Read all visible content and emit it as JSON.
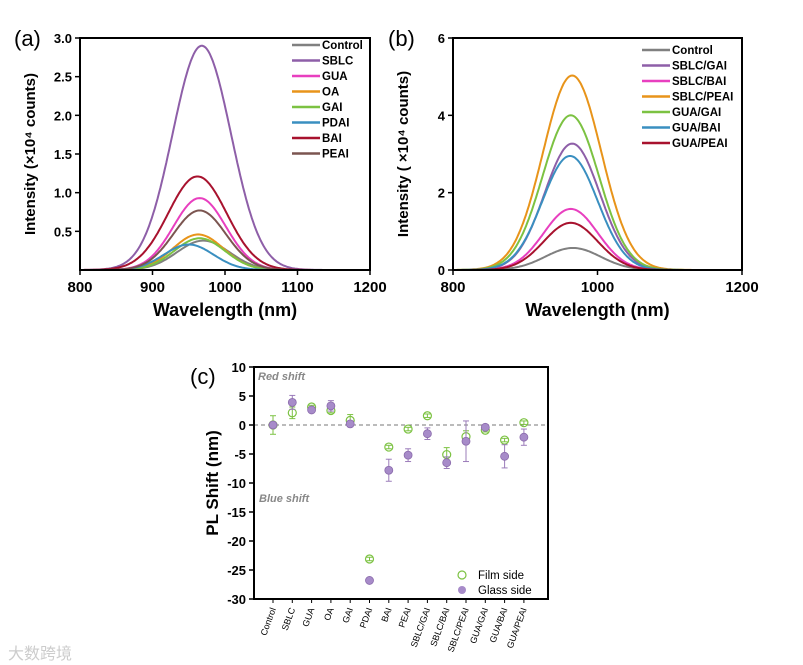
{
  "chart_data": [
    {
      "type": "line",
      "panel_label": "(a)",
      "xlabel": "Wavelength (nm)",
      "ylabel": "Intensity (×10⁴ counts)",
      "xlim": [
        800,
        1200
      ],
      "ylim": [
        0,
        3.0
      ],
      "xticks": [
        "800",
        "900",
        "1000",
        "1100",
        "1200"
      ],
      "yticks": [
        "0.5",
        "1.0",
        "1.5",
        "2.0",
        "2.5",
        "3.0"
      ],
      "legend_position": "top-right",
      "series": [
        {
          "name": "Control",
          "color": "#808080",
          "peak_nm": 970,
          "peak": 0.38,
          "fwhm_nm": 85
        },
        {
          "name": "SBLC",
          "color": "#8e5fa8",
          "peak_nm": 968,
          "peak": 2.9,
          "fwhm_nm": 95
        },
        {
          "name": "GUA",
          "color": "#e83fbf",
          "peak_nm": 965,
          "peak": 0.93,
          "fwhm_nm": 85
        },
        {
          "name": "OA",
          "color": "#e8941a",
          "peak_nm": 963,
          "peak": 0.46,
          "fwhm_nm": 82
        },
        {
          "name": "GAI",
          "color": "#7cc242",
          "peak_nm": 965,
          "peak": 0.41,
          "fwhm_nm": 82
        },
        {
          "name": "PDAI",
          "color": "#3a8fc0",
          "peak_nm": 950,
          "peak": 0.33,
          "fwhm_nm": 80
        },
        {
          "name": "BAI",
          "color": "#a8122e",
          "peak_nm": 962,
          "peak": 1.21,
          "fwhm_nm": 95
        },
        {
          "name": "PEAI",
          "color": "#7b5550",
          "peak_nm": 965,
          "peak": 0.77,
          "fwhm_nm": 85
        }
      ]
    },
    {
      "type": "line",
      "panel_label": "(b)",
      "xlabel": "Wavelength (nm)",
      "ylabel": "Intensity ( ×10⁴ counts)",
      "xlim": [
        800,
        1200
      ],
      "ylim": [
        0,
        6
      ],
      "xticks": [
        "800",
        "1000",
        "1200"
      ],
      "yticks": [
        "0",
        "2",
        "4",
        "6"
      ],
      "legend_position": "top-right",
      "series": [
        {
          "name": "Control",
          "color": "#808080",
          "peak_nm": 966,
          "peak": 0.57,
          "fwhm_nm": 90
        },
        {
          "name": "SBLC/GAI",
          "color": "#8e5fa8",
          "peak_nm": 965,
          "peak": 3.27,
          "fwhm_nm": 90
        },
        {
          "name": "SBLC/BAI",
          "color": "#e83fbf",
          "peak_nm": 963,
          "peak": 1.58,
          "fwhm_nm": 88
        },
        {
          "name": "SBLC/PEAI",
          "color": "#e8941a",
          "peak_nm": 965,
          "peak": 5.03,
          "fwhm_nm": 95
        },
        {
          "name": "GUA/GAI",
          "color": "#7cc242",
          "peak_nm": 963,
          "peak": 4.0,
          "fwhm_nm": 92
        },
        {
          "name": "GUA/BAI",
          "color": "#3a8fc0",
          "peak_nm": 962,
          "peak": 2.95,
          "fwhm_nm": 90
        },
        {
          "name": "GUA/PEAI",
          "color": "#a8122e",
          "peak_nm": 963,
          "peak": 1.22,
          "fwhm_nm": 88
        }
      ]
    },
    {
      "type": "scatter",
      "panel_label": "(c)",
      "ylabel": "PL Shift (nm)",
      "ylim": [
        -30,
        10
      ],
      "yticks": [
        "10",
        "5",
        "0",
        "-5",
        "-10",
        "-15",
        "-20",
        "-25",
        "-30"
      ],
      "annotations": [
        "Red shift",
        "Blue shift"
      ],
      "legend_position": "bottom-right",
      "categories": [
        "Control",
        "SBLC",
        "GUA",
        "OA",
        "GAI",
        "PDAI",
        "BAI",
        "PEAI",
        "SBLC/GAI",
        "SBLC/BAI",
        "SBLC/PEAI",
        "GUA/GAI",
        "GUA/BAI",
        "GUA/PEAI"
      ],
      "series": [
        {
          "name": "Film side",
          "color": "#7cc242",
          "marker": "open-circle",
          "values": [
            0,
            2.1,
            3.1,
            2.5,
            0.8,
            -23.1,
            -3.8,
            -0.7,
            1.6,
            -5.1,
            -2.0,
            -0.9,
            -2.6,
            0.4
          ],
          "errors": [
            1.6,
            1.0,
            0.3,
            0.4,
            1.0,
            0.3,
            0.3,
            0.3,
            0.3,
            1.2,
            1.0,
            0.3,
            0.3,
            0.3
          ]
        },
        {
          "name": "Glass side",
          "color": "#a78bc9",
          "marker": "filled-circle",
          "values": [
            0,
            3.9,
            2.6,
            3.3,
            0.2,
            -26.8,
            -7.8,
            -5.2,
            -1.5,
            -6.5,
            -2.8,
            -0.4,
            -5.4,
            -2.1
          ],
          "errors": [
            0.3,
            1.2,
            0.3,
            0.9,
            0.5,
            0.3,
            1.9,
            1.1,
            1.0,
            1.0,
            3.5,
            0.3,
            2.0,
            1.4
          ]
        }
      ]
    }
  ],
  "watermark": "大数跨境"
}
